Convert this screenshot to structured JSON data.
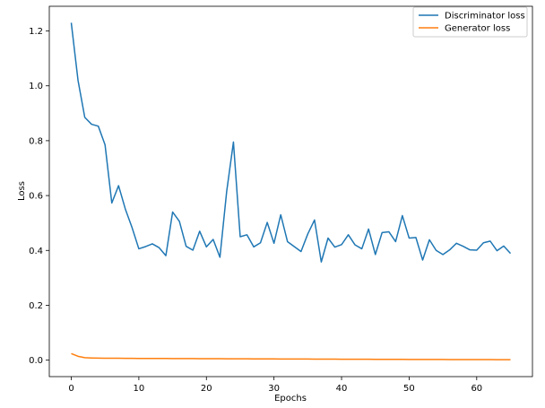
{
  "chart_data": {
    "type": "line",
    "title": "",
    "xlabel": "Epochs",
    "ylabel": "Loss",
    "xlim": [
      -3.25,
      68.25
    ],
    "ylim": [
      -0.06,
      1.29
    ],
    "xticks": [
      0,
      10,
      20,
      30,
      40,
      50,
      60
    ],
    "xtick_labels": [
      "0",
      "10",
      "20",
      "30",
      "40",
      "50",
      "60"
    ],
    "yticks": [
      0.0,
      0.2,
      0.4,
      0.6,
      0.8,
      1.0,
      1.2
    ],
    "ytick_labels": [
      "0.0",
      "0.2",
      "0.4",
      "0.6",
      "0.8",
      "1.0",
      "1.2"
    ],
    "grid": false,
    "legend_position": "top-right",
    "x": [
      0,
      1,
      2,
      3,
      4,
      5,
      6,
      7,
      8,
      9,
      10,
      11,
      12,
      13,
      14,
      15,
      16,
      17,
      18,
      19,
      20,
      21,
      22,
      23,
      24,
      25,
      26,
      27,
      28,
      29,
      30,
      31,
      32,
      33,
      34,
      35,
      36,
      37,
      38,
      39,
      40,
      41,
      42,
      43,
      44,
      45,
      46,
      47,
      48,
      49,
      50,
      51,
      52,
      53,
      54,
      55,
      56,
      57,
      58,
      59,
      60,
      61,
      62,
      63,
      64,
      65
    ],
    "series": [
      {
        "name": "Discriminator loss",
        "color": "#1f77b4",
        "values": [
          1.23,
          1.02,
          0.885,
          0.86,
          0.853,
          0.785,
          0.573,
          0.636,
          0.551,
          0.483,
          0.406,
          0.414,
          0.424,
          0.41,
          0.381,
          0.54,
          0.506,
          0.415,
          0.401,
          0.47,
          0.413,
          0.44,
          0.375,
          0.615,
          0.795,
          0.45,
          0.457,
          0.413,
          0.428,
          0.502,
          0.426,
          0.53,
          0.432,
          0.414,
          0.396,
          0.46,
          0.511,
          0.358,
          0.445,
          0.412,
          0.421,
          0.457,
          0.42,
          0.406,
          0.478,
          0.385,
          0.465,
          0.468,
          0.432,
          0.527,
          0.445,
          0.447,
          0.365,
          0.439,
          0.4,
          0.385,
          0.402,
          0.426,
          0.415,
          0.402,
          0.401,
          0.428,
          0.434,
          0.399,
          0.416,
          0.389
        ]
      },
      {
        "name": "Generator loss",
        "color": "#ff7f0e",
        "values": [
          0.024,
          0.014,
          0.009,
          0.008,
          0.0075,
          0.007,
          0.007,
          0.0068,
          0.0066,
          0.0065,
          0.0064,
          0.0063,
          0.0062,
          0.0061,
          0.006,
          0.0059,
          0.0058,
          0.0057,
          0.0056,
          0.0055,
          0.0054,
          0.0053,
          0.0052,
          0.0051,
          0.005,
          0.0049,
          0.0048,
          0.0047,
          0.0046,
          0.0045,
          0.0044,
          0.0043,
          0.0042,
          0.0041,
          0.004,
          0.004,
          0.0039,
          0.0038,
          0.0037,
          0.0036,
          0.0035,
          0.0035,
          0.0034,
          0.0033,
          0.0032,
          0.0031,
          0.003,
          0.003,
          0.0029,
          0.0028,
          0.0027,
          0.0027,
          0.0026,
          0.0025,
          0.0024,
          0.0024,
          0.0023,
          0.0022,
          0.0022,
          0.0021,
          0.002,
          0.002,
          0.0019,
          0.0018,
          0.0018,
          0.0017
        ]
      }
    ]
  }
}
